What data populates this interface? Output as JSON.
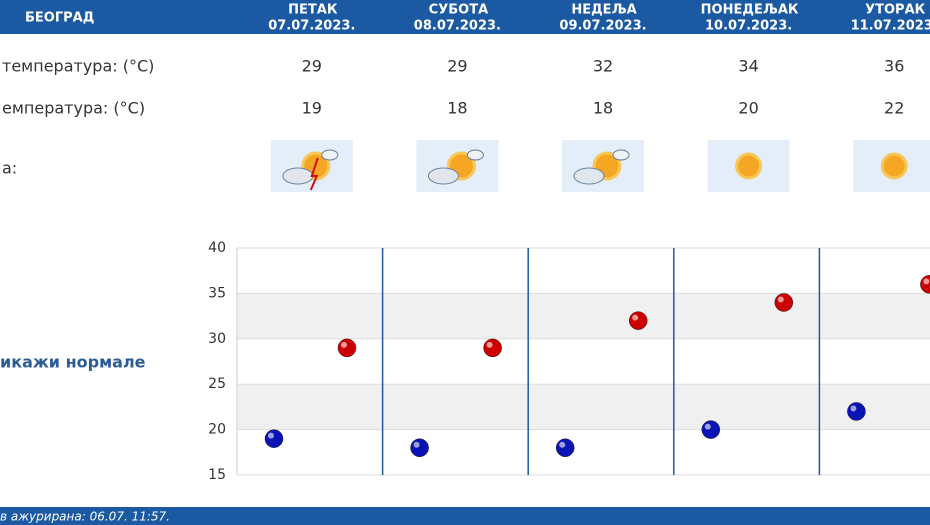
{
  "header": {
    "city": "БЕОГРАД",
    "days": [
      {
        "name": "ПЕТАК",
        "date": "07.07.2023."
      },
      {
        "name": "СУБОТА",
        "date": "08.07.2023."
      },
      {
        "name": "НЕДЕЉА",
        "date": "09.07.2023."
      },
      {
        "name": "ПОНЕДЕЉАК",
        "date": "10.07.2023."
      },
      {
        "name": "УТОРАК",
        "date": "11.07.2023."
      }
    ]
  },
  "rows": {
    "max_label": "температура: (°C)",
    "min_label": "емпература: (°C)",
    "weather_label": "а:"
  },
  "toggle": "икажи нормале",
  "footer": "в ажурирана:  06.07.  11:57.",
  "chart_data": {
    "type": "dot",
    "series": [
      {
        "color": "#cc0000",
        "values": [
          29,
          29,
          32,
          34,
          36
        ]
      },
      {
        "color": "#0a14b4",
        "values": [
          19,
          18,
          18,
          20,
          22
        ]
      }
    ],
    "ylim": [
      15,
      40
    ],
    "yticks": [
      15,
      20,
      25,
      30,
      35,
      40
    ],
    "grid": true
  }
}
